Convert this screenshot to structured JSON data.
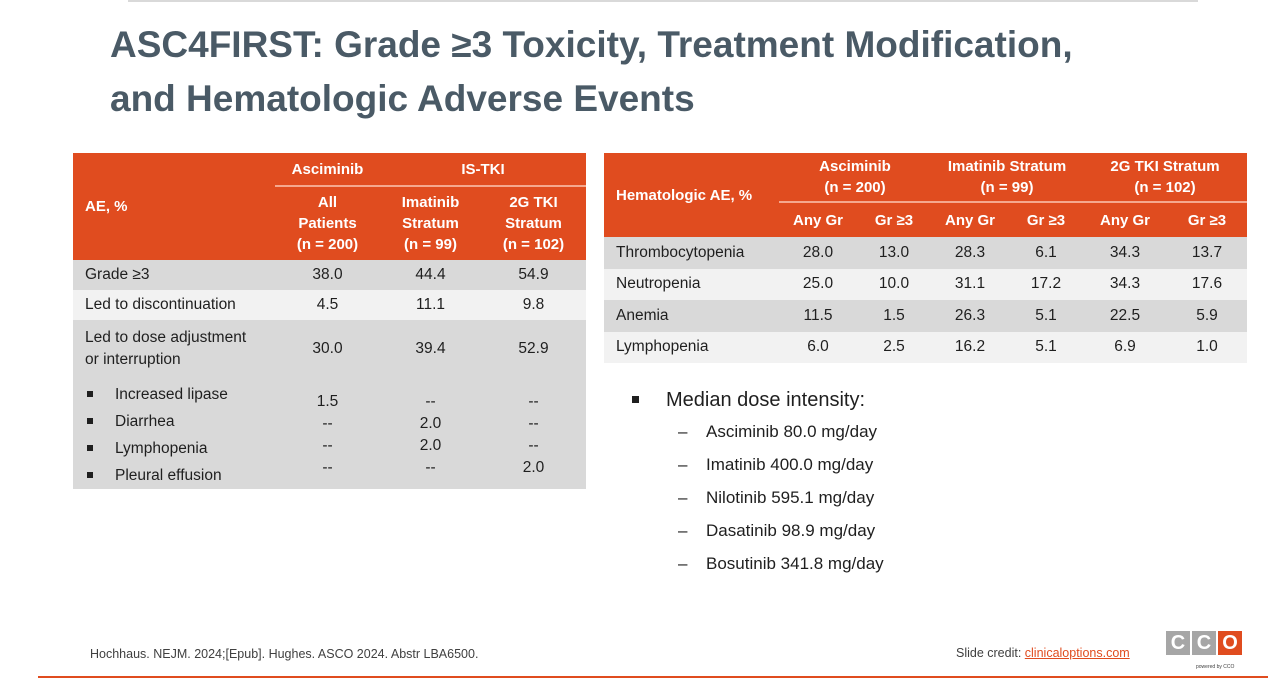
{
  "title": {
    "line1": "ASC4FIRST: Grade ≥3 Toxicity, Treatment Modification,",
    "line2": "and Hematologic Adverse Events"
  },
  "ae_table": {
    "group_headers": {
      "asciminib": "Asciminib",
      "is_tki": "IS-TKI"
    },
    "row_header": "AE, %",
    "columns": [
      {
        "line1": "All",
        "line2": "Patients",
        "line3": "(n = 200)"
      },
      {
        "line1": "Imatinib",
        "line2": "Stratum",
        "line3": "(n = 99)"
      },
      {
        "line1": "2G TKI",
        "line2": "Stratum",
        "line3": "(n = 102)"
      }
    ],
    "rows": [
      {
        "label": "Grade ≥3",
        "values": [
          "38.0",
          "44.4",
          "54.9"
        ]
      },
      {
        "label": "Led to discontinuation",
        "values": [
          "4.5",
          "11.1",
          "9.8"
        ]
      },
      {
        "label_line1": "Led to dose adjustment",
        "label_line2": "or interruption",
        "values": [
          "30.0",
          "39.4",
          "52.9"
        ]
      }
    ],
    "subrows": [
      {
        "label": "Increased lipase",
        "values": [
          "1.5",
          "--",
          "--"
        ]
      },
      {
        "label": "Diarrhea",
        "values": [
          "--",
          "2.0",
          "--"
        ]
      },
      {
        "label": "Lymphopenia",
        "values": [
          "--",
          "2.0",
          "--"
        ]
      },
      {
        "label": "Pleural effusion",
        "values": [
          "--",
          "--",
          "2.0"
        ]
      }
    ]
  },
  "hem_table": {
    "row_header": "Hematologic AE, %",
    "groups": [
      {
        "name": "Asciminib",
        "n": "(n = 200)"
      },
      {
        "name": "Imatinib Stratum",
        "n": "(n = 99)"
      },
      {
        "name": "2G TKI Stratum",
        "n": "(n = 102)"
      }
    ],
    "subheaders": [
      "Any Gr",
      "Gr ≥3",
      "Any Gr",
      "Gr ≥3",
      "Any Gr",
      "Gr ≥3"
    ],
    "rows": [
      {
        "label": "Thrombocytopenia",
        "values": [
          "28.0",
          "13.0",
          "28.3",
          "6.1",
          "34.3",
          "13.7"
        ]
      },
      {
        "label": "Neutropenia",
        "values": [
          "25.0",
          "10.0",
          "31.1",
          "17.2",
          "34.3",
          "17.6"
        ]
      },
      {
        "label": "Anemia",
        "values": [
          "11.5",
          "1.5",
          "26.3",
          "5.1",
          "22.5",
          "5.9"
        ]
      },
      {
        "label": "Lymphopenia",
        "values": [
          "6.0",
          "2.5",
          "16.2",
          "5.1",
          "6.9",
          "1.0"
        ]
      }
    ]
  },
  "dose_intensity": {
    "heading": "Median dose intensity:",
    "dash": "–",
    "items": [
      "Asciminib 80.0 mg/day",
      "Imatinib 400.0 mg/day",
      "Nilotinib 595.1 mg/day",
      "Dasatinib 98.9 mg/day",
      "Bosutinib 341.8 mg/day"
    ]
  },
  "footer": {
    "reference": "Hochhaus. NEJM. 2024;[Epub]. Hughes. ASCO 2024. Abstr LBA6500.",
    "credit_label": "Slide credit: ",
    "credit_link": "clinicaloptions.com"
  },
  "logo": {
    "letters": [
      "C",
      "C",
      "O"
    ],
    "tagline": "powered by CCO"
  },
  "colors": {
    "accent": "#e04c1f",
    "title": "#4a5a66",
    "row_dark": "#d9d9d9",
    "row_light": "#f2f2f2"
  }
}
